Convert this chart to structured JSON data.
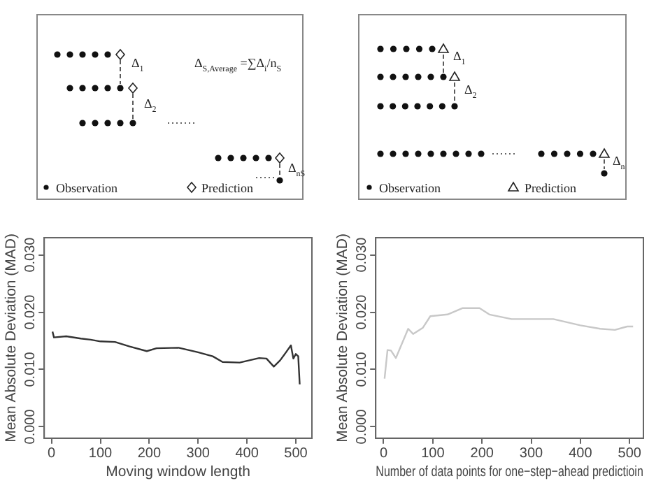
{
  "chart_data": [
    {
      "type": "other",
      "annotations": [
        "Δ$_{1}$",
        "Δ$_{2}$",
        "Δ$_{nS}$",
        "Δ$_{S,Average}$ =∑Δ$_{i}$/n$_{S}$",
        "Observation",
        "Prediction"
      ]
    },
    {
      "type": "other",
      "annotations": [
        "Δ$_{1}$",
        "Δ$_{2}$",
        "Δ$_{n}$",
        "Observation",
        "Prediction"
      ]
    },
    {
      "type": "line",
      "xlabel": "Moving window length",
      "ylabel": "Mean Absolute Deviation (MAD)",
      "xlim": [
        -15,
        533
      ],
      "ylim": [
        -0.002,
        0.033
      ],
      "xticks": [
        0,
        100,
        200,
        300,
        400,
        500
      ],
      "yticks": [
        {
          "value": 0,
          "label": "0.000"
        },
        {
          "value": 0.01,
          "label": "0.010"
        },
        {
          "value": 0.02,
          "label": "0.020"
        },
        {
          "value": 0.03,
          "label": "0.030"
        }
      ],
      "marker": "none",
      "line_style": "solid",
      "series": [
        {
          "color": "#333333",
          "x": [
            2,
            5,
            30,
            60,
            80,
            100,
            130,
            160,
            195,
            215,
            260,
            300,
            330,
            350,
            385,
            405,
            425,
            440,
            455,
            468,
            480,
            490,
            495,
            500,
            505,
            508
          ],
          "values": [
            0.0166,
            0.0156,
            0.0158,
            0.0154,
            0.0152,
            0.0149,
            0.0148,
            0.014,
            0.0132,
            0.0137,
            0.0138,
            0.013,
            0.0123,
            0.0113,
            0.0112,
            0.0116,
            0.012,
            0.0119,
            0.0105,
            0.0116,
            0.013,
            0.0142,
            0.0119,
            0.0127,
            0.0123,
            0.0074
          ]
        }
      ]
    },
    {
      "type": "line",
      "xlabel": "Number of data points for one−step−ahead predictioin",
      "ylabel": "Mean Absolute Deviation (MAD)",
      "xlim": [
        -16,
        528
      ],
      "ylim": [
        -0.002,
        0.033
      ],
      "xticks": [
        0,
        100,
        200,
        300,
        400,
        500
      ],
      "yticks": [
        {
          "value": 0,
          "label": "0.000"
        },
        {
          "value": 0.01,
          "label": "0.010"
        },
        {
          "value": 0.02,
          "label": "0.020"
        },
        {
          "value": 0.03,
          "label": "0.030"
        }
      ],
      "marker": "none",
      "line_style": "solid",
      "series": [
        {
          "color": "#c8c8c8",
          "x": [
            2,
            8,
            15,
            25,
            50,
            60,
            80,
            95,
            130,
            160,
            195,
            215,
            260,
            345,
            400,
            440,
            470,
            495,
            507
          ],
          "values": [
            0.0084,
            0.0134,
            0.0133,
            0.012,
            0.0171,
            0.0162,
            0.0173,
            0.0193,
            0.0196,
            0.0207,
            0.0207,
            0.0196,
            0.0188,
            0.0188,
            0.0177,
            0.0171,
            0.0169,
            0.0175,
            0.0175
          ]
        }
      ]
    }
  ]
}
